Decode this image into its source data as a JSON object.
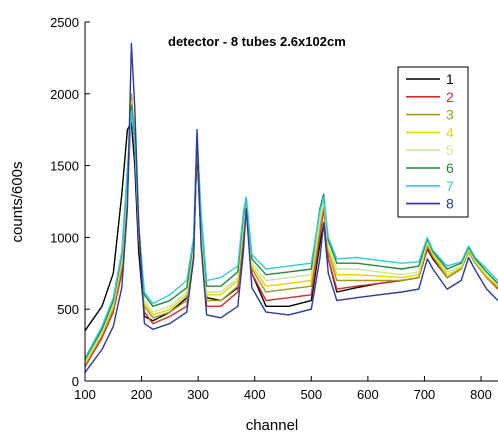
{
  "chart_data": {
    "type": "line",
    "title": "detector - 8 tubes 2.6x102cm",
    "xlabel": "channel",
    "ylabel": "counts/600s",
    "xlim": [
      100,
      830
    ],
    "ylim": [
      0,
      2500
    ],
    "xticks": [
      100,
      200,
      300,
      400,
      500,
      600,
      700,
      800
    ],
    "yticks": [
      0,
      500,
      1000,
      1500,
      2000,
      2500
    ],
    "grid": false,
    "legend_position": "top-right",
    "x": [
      100,
      130,
      150,
      165,
      175,
      182,
      188,
      195,
      205,
      220,
      250,
      280,
      292,
      298,
      305,
      315,
      340,
      370,
      380,
      385,
      395,
      420,
      460,
      500,
      515,
      522,
      530,
      545,
      580,
      620,
      660,
      690,
      705,
      715,
      740,
      765,
      778,
      790,
      810,
      830
    ],
    "series": [
      {
        "name": "1",
        "color": "#000000",
        "values": [
          350,
          520,
          750,
          1300,
          1750,
          1800,
          1500,
          900,
          450,
          420,
          480,
          580,
          900,
          1600,
          1000,
          580,
          560,
          650,
          950,
          1200,
          750,
          520,
          520,
          560,
          950,
          1100,
          850,
          620,
          650,
          680,
          700,
          720,
          920,
          850,
          720,
          780,
          900,
          820,
          720,
          650
        ]
      },
      {
        "name": "2",
        "color": "#d42a2a",
        "values": [
          100,
          300,
          480,
          750,
          1300,
          1900,
          1650,
          1000,
          480,
          400,
          450,
          520,
          850,
          1650,
          1000,
          520,
          520,
          620,
          1000,
          1250,
          750,
          560,
          580,
          600,
          1000,
          1200,
          850,
          640,
          660,
          680,
          700,
          720,
          930,
          860,
          720,
          780,
          910,
          830,
          720,
          640
        ]
      },
      {
        "name": "3",
        "color": "#9c9c1a",
        "values": [
          110,
          320,
          500,
          800,
          1350,
          2000,
          1700,
          1100,
          520,
          440,
          480,
          560,
          900,
          1700,
          1050,
          560,
          560,
          660,
          1050,
          1250,
          780,
          620,
          640,
          660,
          1050,
          1250,
          900,
          700,
          700,
          700,
          700,
          720,
          950,
          870,
          720,
          780,
          900,
          820,
          720,
          650
        ]
      },
      {
        "name": "4",
        "color": "#e6d400",
        "values": [
          120,
          330,
          520,
          820,
          1380,
          1950,
          1680,
          1080,
          540,
          460,
          500,
          600,
          930,
          1720,
          1080,
          600,
          600,
          700,
          1080,
          1250,
          800,
          660,
          680,
          700,
          1100,
          1250,
          920,
          740,
          740,
          730,
          720,
          740,
          960,
          880,
          740,
          790,
          910,
          830,
          730,
          660
        ]
      },
      {
        "name": "5",
        "color": "#c8e6a0",
        "values": [
          130,
          340,
          540,
          850,
          1400,
          1900,
          1650,
          1050,
          560,
          480,
          520,
          620,
          950,
          1700,
          1100,
          620,
          620,
          720,
          1100,
          1260,
          820,
          700,
          720,
          740,
          1120,
          1260,
          940,
          780,
          780,
          760,
          740,
          760,
          970,
          890,
          760,
          800,
          920,
          840,
          740,
          670
        ]
      },
      {
        "name": "6",
        "color": "#1e8a3c",
        "values": [
          150,
          360,
          560,
          880,
          1450,
          1920,
          1680,
          1080,
          600,
          520,
          560,
          650,
          980,
          1720,
          1150,
          660,
          660,
          760,
          1150,
          1280,
          850,
          740,
          760,
          780,
          1200,
          1300,
          980,
          820,
          820,
          800,
          780,
          800,
          990,
          900,
          780,
          820,
          930,
          850,
          760,
          680
        ]
      },
      {
        "name": "7",
        "color": "#38c8d8",
        "values": [
          160,
          380,
          580,
          900,
          1480,
          1880,
          1650,
          1060,
          620,
          540,
          600,
          700,
          1000,
          1700,
          1180,
          700,
          720,
          800,
          1180,
          1280,
          880,
          780,
          800,
          820,
          1180,
          1280,
          1000,
          850,
          860,
          840,
          820,
          830,
          1000,
          910,
          800,
          830,
          940,
          860,
          780,
          700
        ]
      },
      {
        "name": "8",
        "color": "#2a3aa0",
        "values": [
          60,
          220,
          380,
          650,
          1200,
          2350,
          1900,
          1100,
          400,
          360,
          400,
          480,
          850,
          1750,
          950,
          460,
          440,
          520,
          900,
          1200,
          650,
          480,
          460,
          500,
          850,
          1100,
          750,
          560,
          580,
          600,
          620,
          640,
          850,
          780,
          640,
          700,
          860,
          770,
          640,
          560
        ]
      }
    ]
  }
}
